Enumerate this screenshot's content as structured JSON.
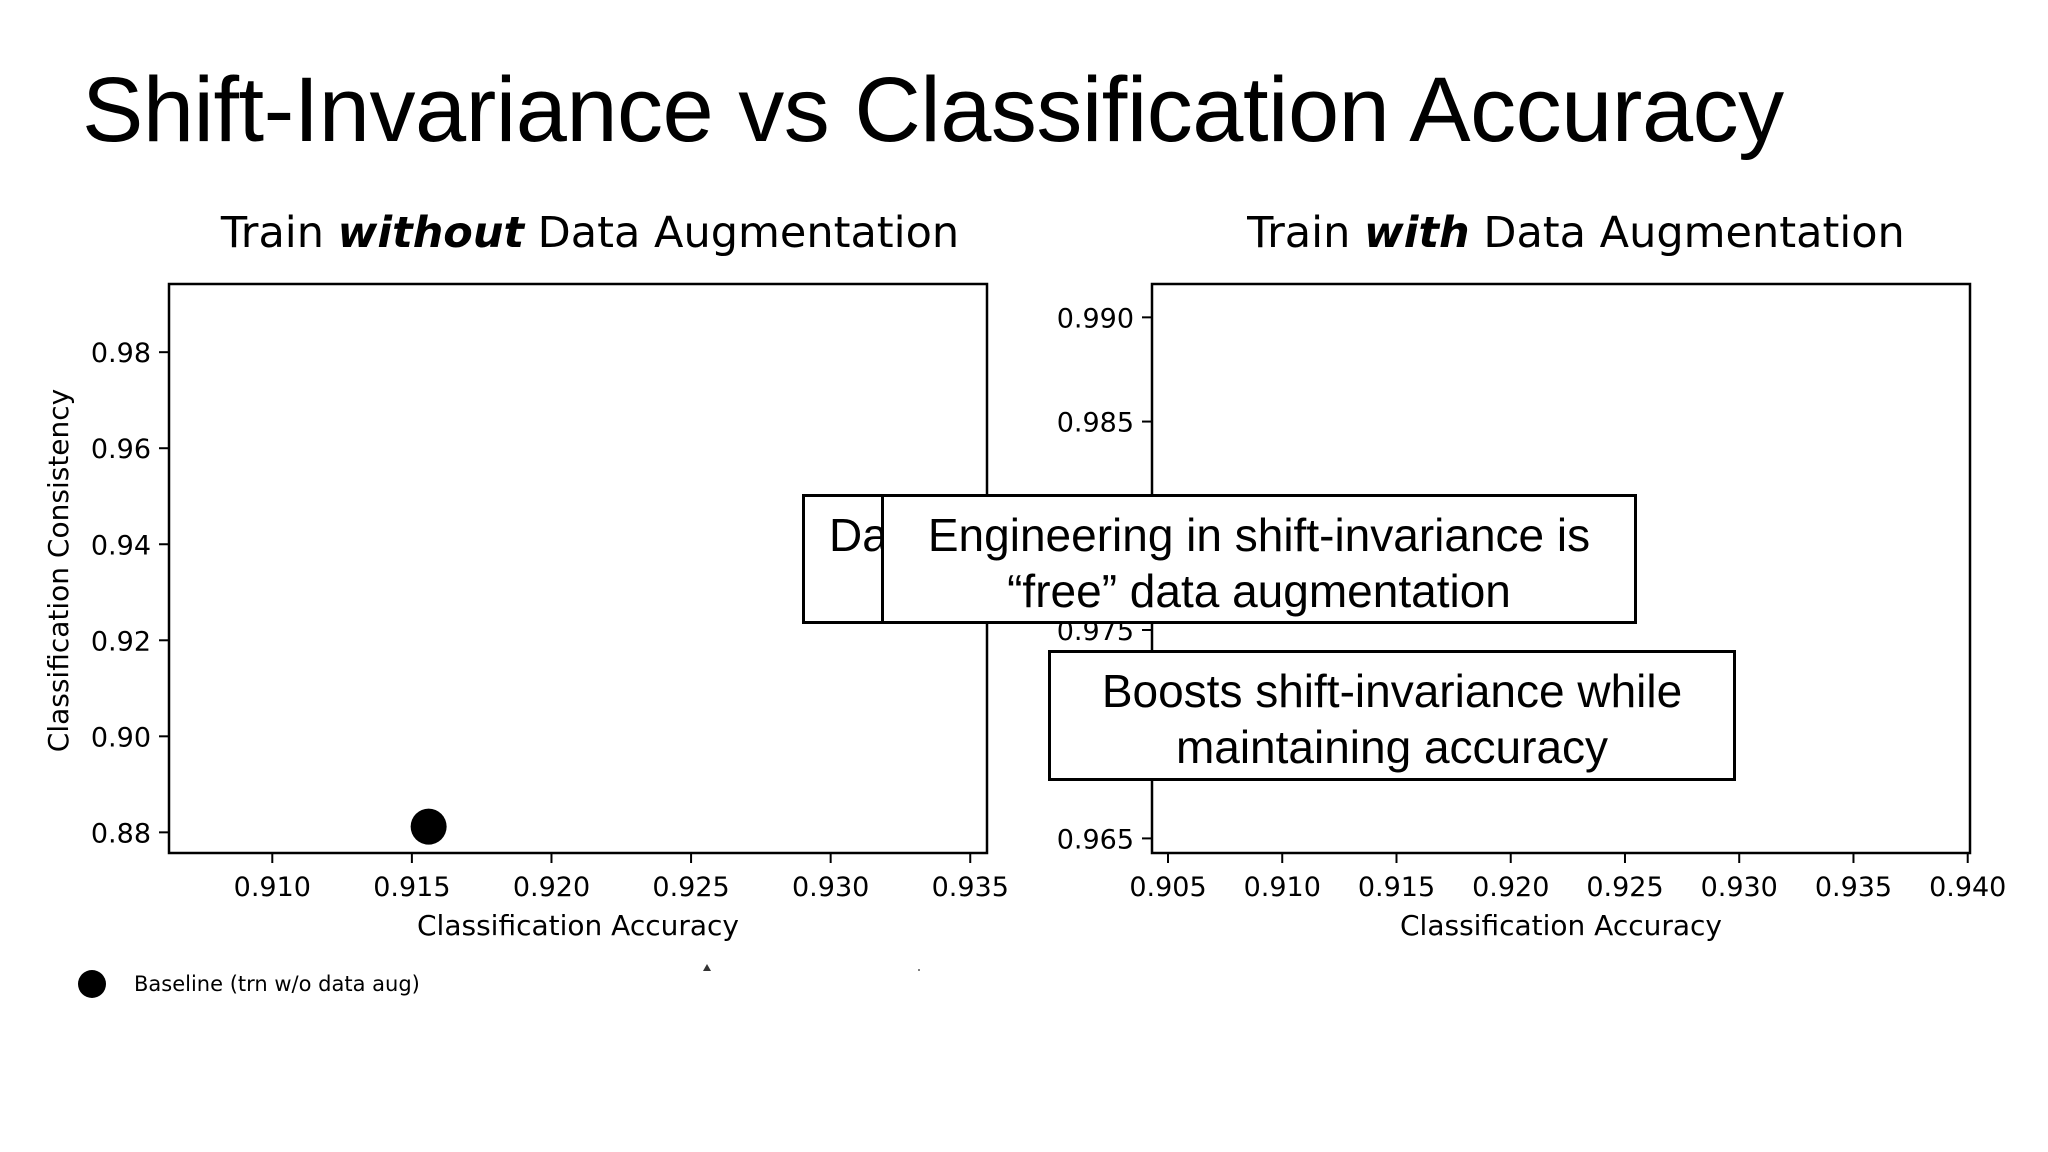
{
  "slide": {
    "title": "Shift-Invariance vs Classification Accuracy"
  },
  "charts_header": {
    "left": {
      "prefix": "Train ",
      "emphasis": "without",
      "suffix": " Data Augmentation"
    },
    "right": {
      "prefix": "Train ",
      "emphasis": "with",
      "suffix": " Data Augmentation"
    }
  },
  "callouts": {
    "partial": "Da",
    "engineering": "Engineering in shift-invariance is “free” data augmentation",
    "boosts": "Boosts shift-invariance while maintaining accuracy"
  },
  "legend": {
    "baseline_label": "Baseline (trn w/o data aug)",
    "baseline_color": "#000000"
  },
  "chart_data": [
    {
      "type": "scatter",
      "title": "Train without Data Augmentation",
      "xlabel": "Classification Accuracy",
      "ylabel": "Classification Consistency",
      "xlim": [
        0.9063,
        0.9356
      ],
      "ylim": [
        0.8757,
        0.9942
      ],
      "xticks": [
        "0.910",
        "0.915",
        "0.920",
        "0.925",
        "0.930",
        "0.935"
      ],
      "yticks": [
        "0.88",
        "0.90",
        "0.92",
        "0.94",
        "0.96",
        "0.98"
      ],
      "grid": false,
      "series": [
        {
          "name": "Baseline (trn w/o data aug)",
          "color": "#000000",
          "points": [
            {
              "x": 0.9156,
              "y": 0.8812
            }
          ]
        }
      ]
    },
    {
      "type": "scatter",
      "title": "Train with Data Augmentation",
      "xlabel": "Classification Accuracy",
      "ylabel": "",
      "xlim": [
        0.9043,
        0.9401
      ],
      "ylim": [
        0.9643,
        0.9916
      ],
      "xticks": [
        "0.905",
        "0.910",
        "0.915",
        "0.920",
        "0.925",
        "0.930",
        "0.935",
        "0.940"
      ],
      "yticks": [
        "0.965",
        "0.975",
        "0.985",
        "0.990"
      ],
      "grid": false,
      "series": []
    }
  ]
}
